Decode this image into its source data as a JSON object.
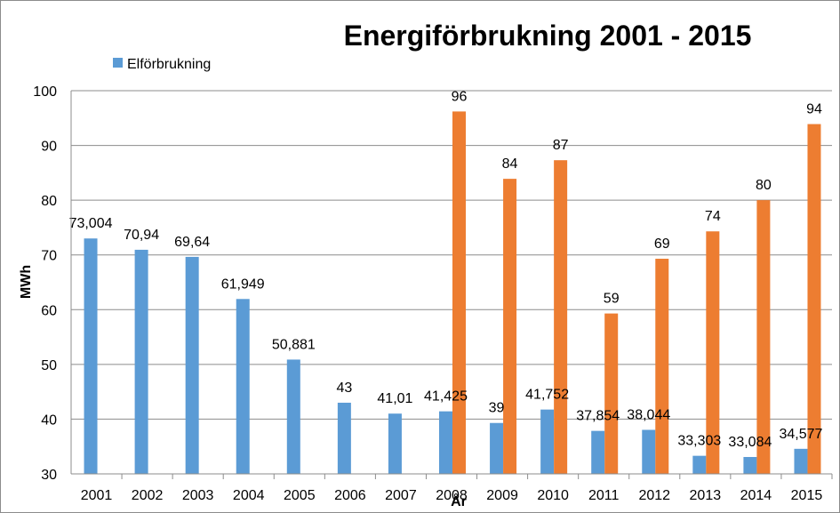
{
  "chart_data": {
    "type": "bar",
    "title": "Energiförbrukning 2001 - 2015",
    "xlabel": "År",
    "ylabel": "MWh",
    "ylim": [
      30,
      100
    ],
    "yticks": [
      30,
      40,
      50,
      60,
      70,
      80,
      90,
      100
    ],
    "ytick_labels": [
      "30",
      "40",
      "50",
      "60",
      "70",
      "80",
      "90",
      "100"
    ],
    "grid": true,
    "legend_position": "top-left",
    "categories": [
      "2001",
      "2002",
      "2003",
      "2004",
      "2005",
      "2006",
      "2007",
      "2008",
      "2009",
      "2010",
      "2011",
      "2012",
      "2013",
      "2014",
      "2015"
    ],
    "series": [
      {
        "name": "Elförbrukning",
        "color": "#5b9bd5",
        "values": [
          73.004,
          70.94,
          69.64,
          61.949,
          50.881,
          43,
          41.01,
          41.425,
          39.3,
          41.752,
          37.854,
          38.044,
          33.303,
          33.084,
          34.577
        ],
        "labels": [
          "73,004",
          "70,94",
          "69,64",
          "61,949",
          "50,881",
          "43",
          "41,01",
          "41,425",
          "39",
          "41,752",
          "37,854",
          "38,044",
          "33,303",
          "33,084",
          "34,577"
        ]
      },
      {
        "color": "#ed7d31",
        "values": [
          null,
          null,
          null,
          null,
          null,
          null,
          null,
          96.2,
          83.9,
          87.3,
          59.3,
          69.3,
          74.3,
          80,
          93.9
        ],
        "labels": [
          "",
          "",
          "",
          "",
          "",
          "",
          "",
          "96",
          "84",
          "87",
          "59",
          "69",
          "74",
          "80",
          "94"
        ]
      }
    ]
  }
}
